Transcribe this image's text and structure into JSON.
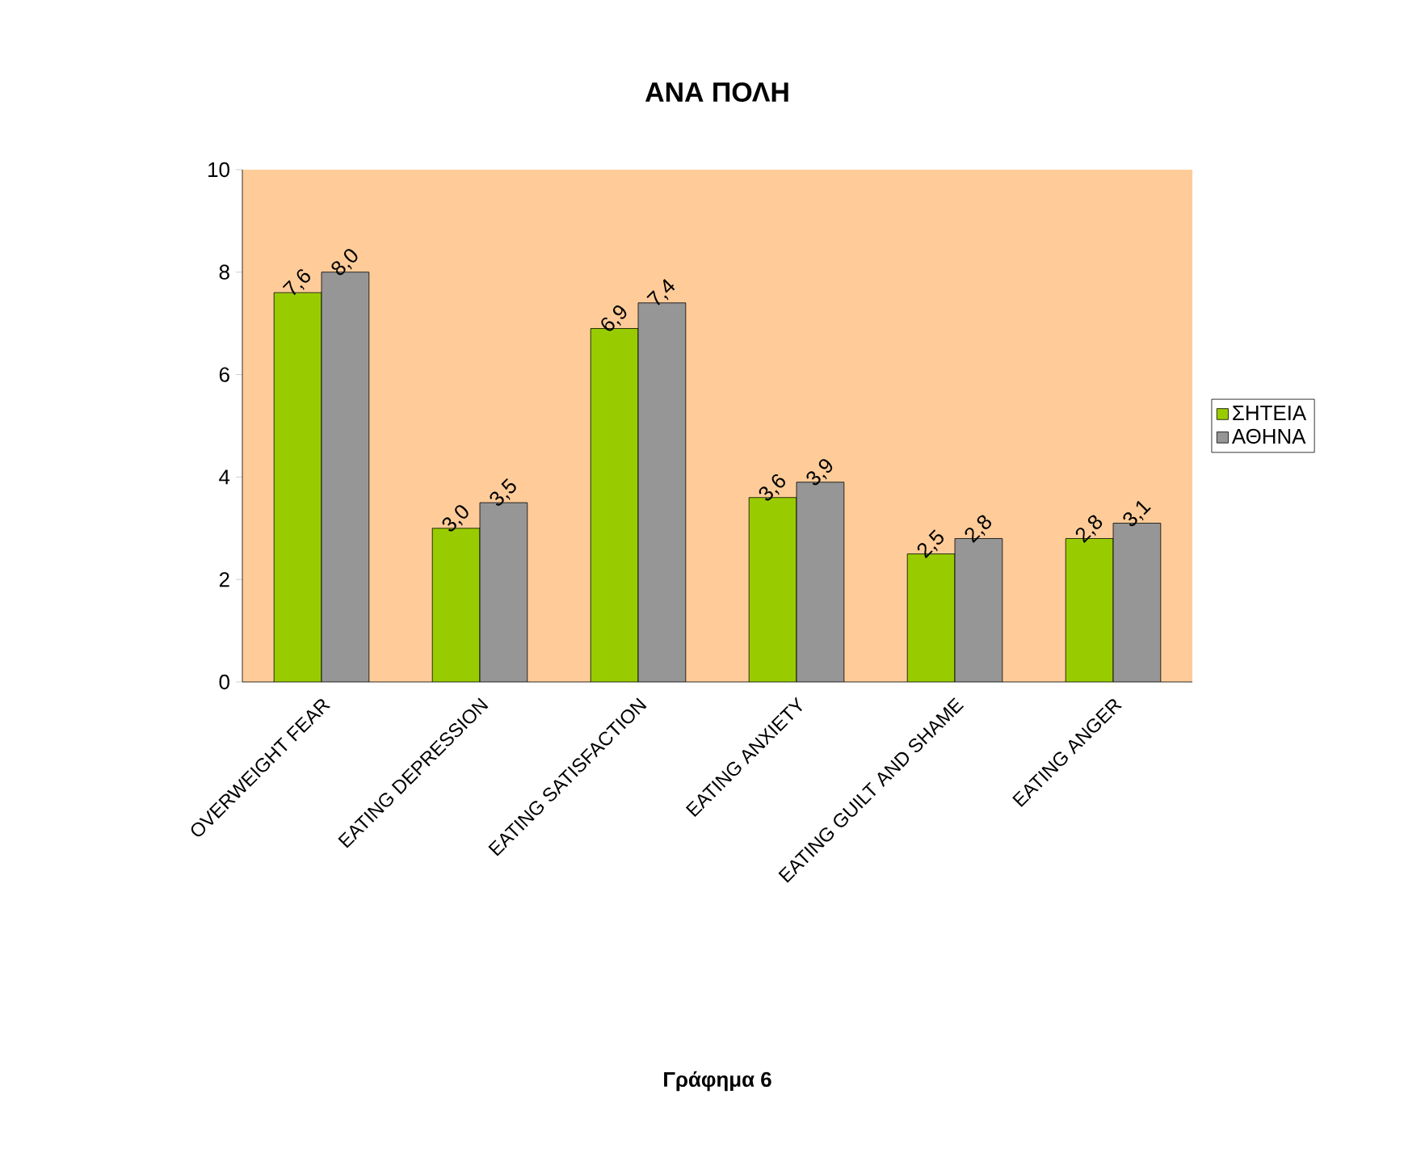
{
  "chart_data": {
    "type": "bar",
    "title": "ΑΝΑ ΠΟΛΗ",
    "categories": [
      "OVERWEIGHT FEAR",
      "EATING DEPRESSION",
      "EATING SATISFACTION",
      "EATING ANXIETY",
      "EATING GUILT AND SHAME",
      "EATING ANGER"
    ],
    "series": [
      {
        "name": "ΣΗΤΕΙΑ",
        "color": "#99cc00",
        "values": [
          7.6,
          3.0,
          6.9,
          3.6,
          2.5,
          2.8
        ],
        "value_labels": [
          "7,6",
          "3,0",
          "6,9",
          "3,6",
          "2,5",
          "2,8"
        ]
      },
      {
        "name": "ΑΘΗΝΑ",
        "color": "#969696",
        "values": [
          8.0,
          3.5,
          7.4,
          3.9,
          2.8,
          3.1
        ],
        "value_labels": [
          "8,0",
          "3,5",
          "7,4",
          "3,9",
          "2,8",
          "3,1"
        ]
      }
    ],
    "ylim": [
      0,
      10
    ],
    "yticks": [
      0,
      2,
      4,
      6,
      8,
      10
    ],
    "grid": false,
    "legend": "right",
    "annotations": [
      "Γράφημα 6"
    ]
  }
}
